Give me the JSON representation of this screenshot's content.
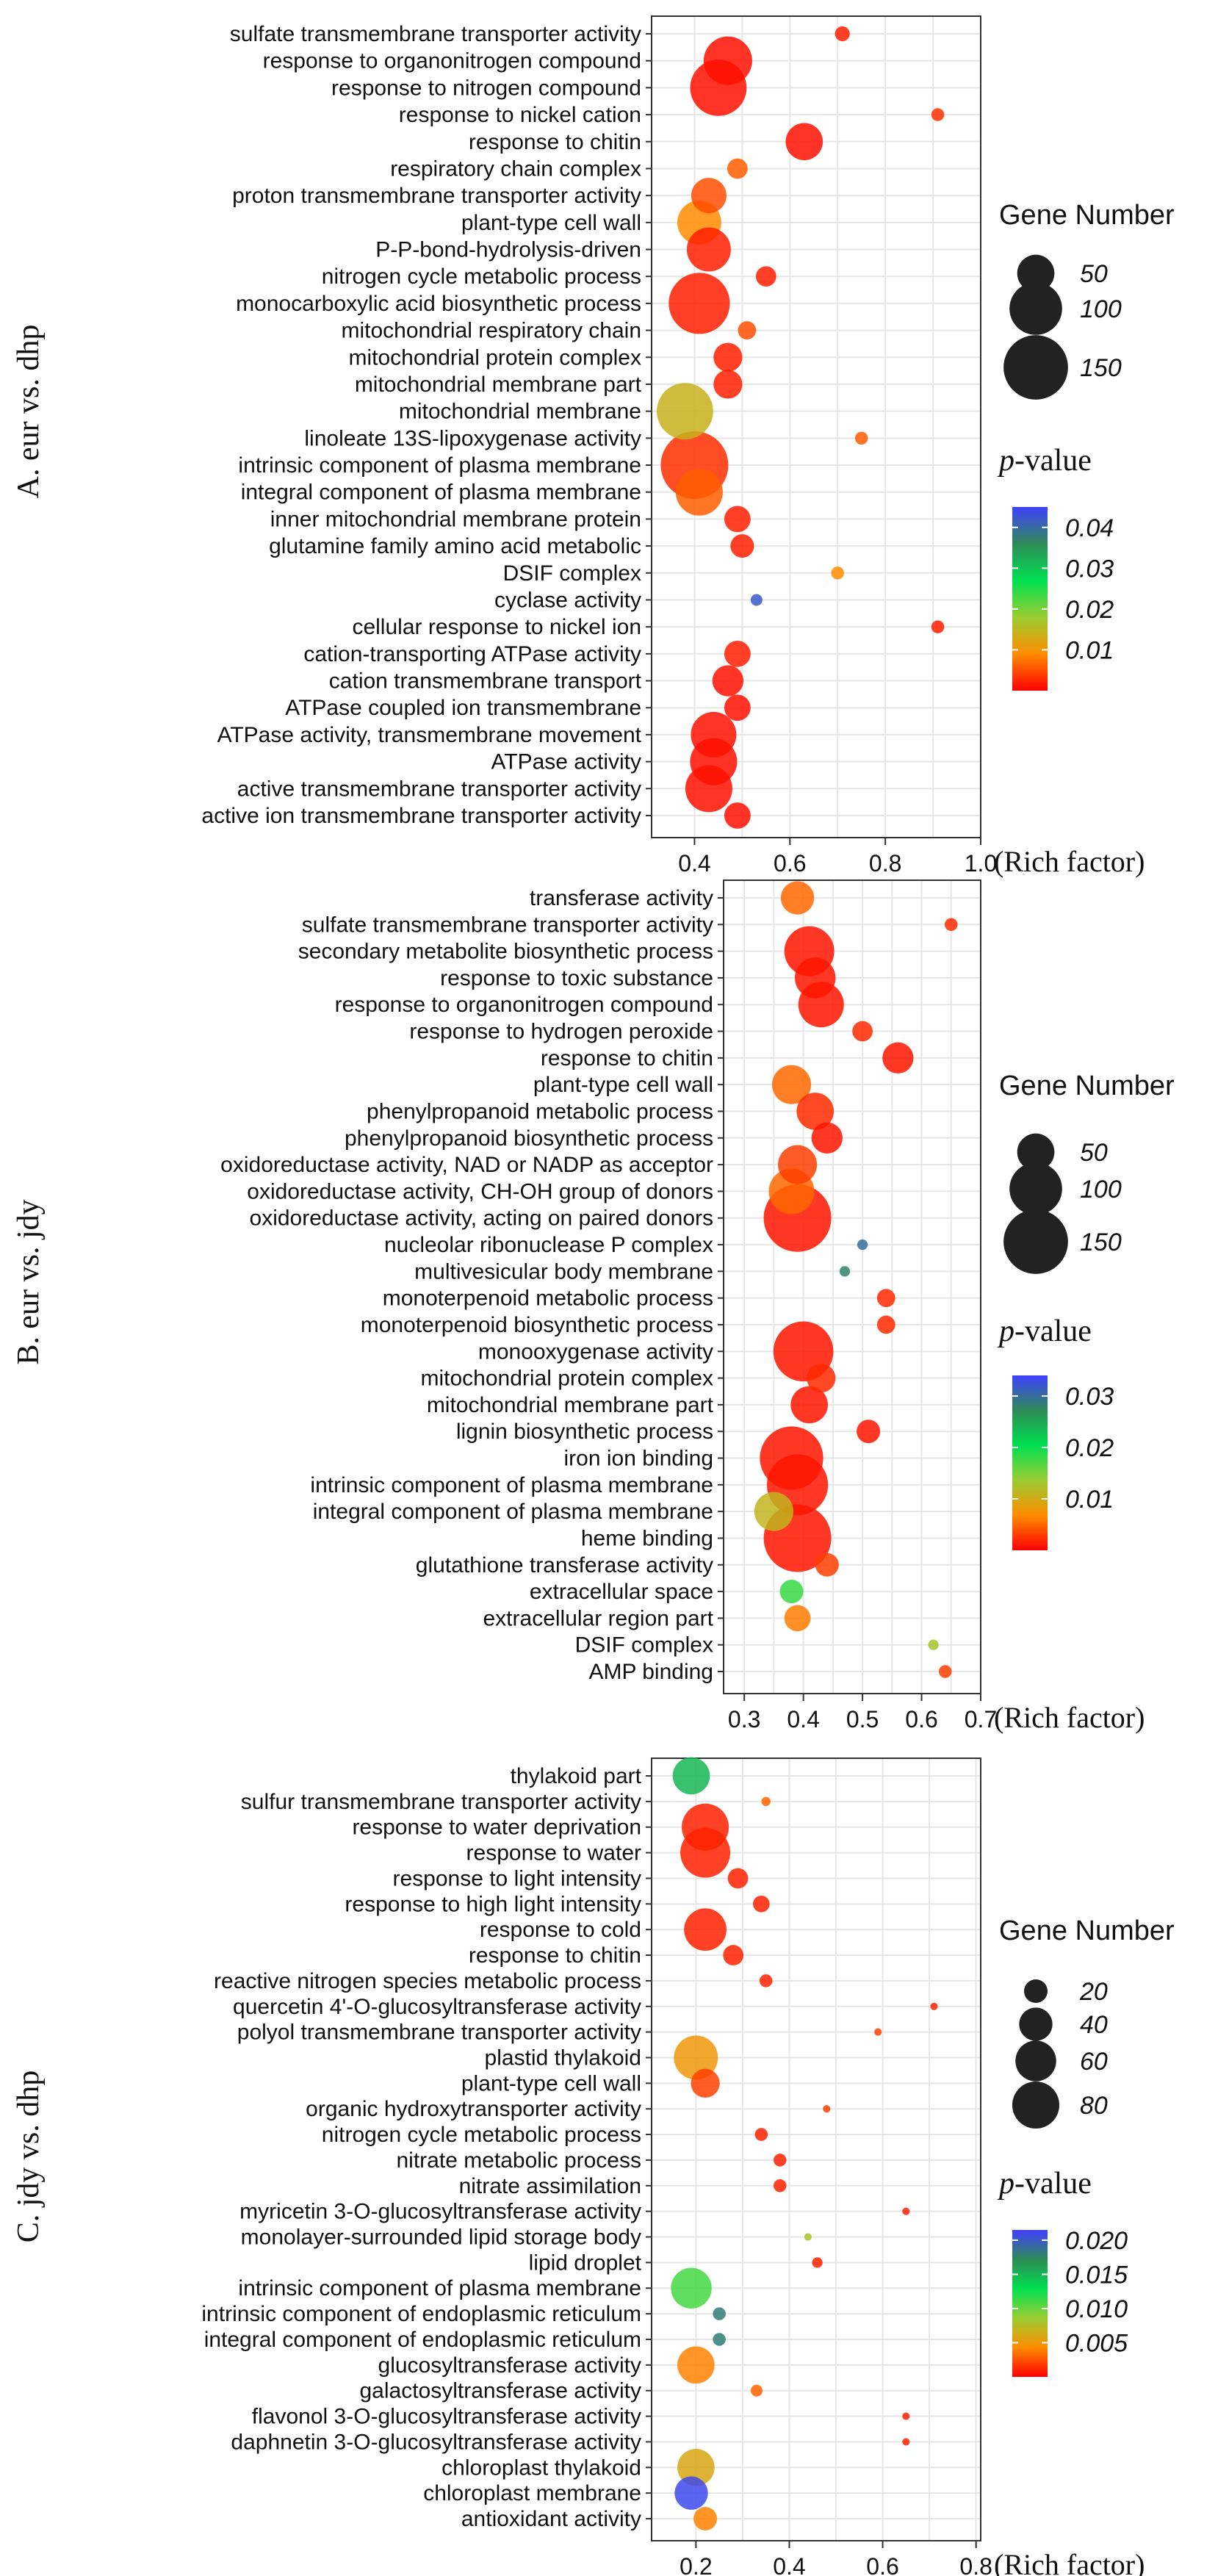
{
  "legend_text": {
    "size_title": "Gene Number",
    "color_title_italic": "p",
    "color_title_rest": "-value",
    "x_label": "(Rich factor)"
  },
  "colors": {
    "low": "#ff0000",
    "scale": [
      "#ff0000",
      "#ff8c00",
      "#9acd32",
      "#00e050",
      "#2e8b57",
      "#4040ff"
    ]
  },
  "chart_data": [
    {
      "type": "scatter",
      "panel_label": "A. eur vs. dhp",
      "xlabel": "(Rich factor)",
      "x_ticks": [
        "0.4",
        "0.6",
        "0.8",
        "1.0"
      ],
      "xlim": [
        0.31,
        1.0
      ],
      "size_legend": {
        "title": "Gene Number",
        "values": [
          50,
          100,
          150
        ],
        "labels": [
          "50",
          "100",
          "150"
        ]
      },
      "color_legend": {
        "title": "p-value",
        "min": 0,
        "max": 0.045,
        "ticks": [
          0.04,
          0.03,
          0.02,
          0.01
        ],
        "labels": [
          "0.04",
          "0.03",
          "0.02",
          "0.01"
        ]
      },
      "categories": [
        "sulfate transmembrane transporter activity",
        "response to organonitrogen compound",
        "response to nitrogen compound",
        "response to nickel cation",
        "response to chitin",
        "respiratory chain complex",
        "proton transmembrane transporter activity",
        "plant-type cell wall",
        "P-P-bond-hydrolysis-driven",
        "nitrogen cycle metabolic process",
        "monocarboxylic acid biosynthetic process",
        "mitochondrial respiratory chain",
        "mitochondrial protein complex",
        "mitochondrial membrane part",
        "mitochondrial membrane",
        "linoleate 13S-lipoxygenase activity",
        "intrinsic component of plasma membrane",
        "integral component of plasma membrane",
        "inner mitochondrial membrane protein",
        "glutamine family amino acid metabolic",
        "DSIF complex",
        "cyclase activity",
        "cellular response to nickel ion",
        "cation-transporting ATPase activity",
        "cation transmembrane transport",
        "ATPase coupled ion transmembrane",
        "ATPase activity, transmembrane movement",
        "ATPase activity",
        "active transmembrane transporter activity",
        "active ion transmembrane transporter activity"
      ],
      "x": [
        0.71,
        0.47,
        0.45,
        0.91,
        0.63,
        0.49,
        0.43,
        0.41,
        0.43,
        0.55,
        0.41,
        0.51,
        0.47,
        0.47,
        0.38,
        0.75,
        0.4,
        0.41,
        0.49,
        0.5,
        0.7,
        0.53,
        0.91,
        0.49,
        0.47,
        0.49,
        0.44,
        0.44,
        0.43,
        0.49
      ],
      "gene_number": [
        8,
        85,
        115,
        6,
        50,
        15,
        45,
        70,
        70,
        15,
        135,
        12,
        30,
        30,
        115,
        6,
        165,
        80,
        25,
        20,
        6,
        5,
        6,
        25,
        35,
        25,
        75,
        80,
        80,
        25
      ],
      "p_value": [
        0.002,
        0.001,
        0.001,
        0.003,
        0.001,
        0.006,
        0.005,
        0.009,
        0.002,
        0.002,
        0.002,
        0.005,
        0.002,
        0.002,
        0.014,
        0.006,
        0.003,
        0.006,
        0.002,
        0.002,
        0.009,
        0.042,
        0.002,
        0.002,
        0.001,
        0.001,
        0.001,
        0.001,
        0.001,
        0.001
      ]
    },
    {
      "type": "scatter",
      "panel_label": "B. eur vs. jdy",
      "xlabel": "(Rich factor)",
      "x_ticks": [
        "0.3",
        "0.4",
        "0.5",
        "0.6",
        "0.7"
      ],
      "xlim": [
        0.265,
        0.7
      ],
      "size_legend": {
        "title": "Gene Number",
        "values": [
          50,
          100,
          150
        ],
        "labels": [
          "50",
          "100",
          "150"
        ]
      },
      "color_legend": {
        "title": "p-value",
        "min": 0,
        "max": 0.034,
        "ticks": [
          0.03,
          0.02,
          0.01
        ],
        "labels": [
          "0.03",
          "0.02",
          "0.01"
        ]
      },
      "categories": [
        "transferase activity",
        "sulfate transmembrane transporter activity",
        "secondary metabolite biosynthetic process",
        "response to toxic substance",
        "response to organonitrogen compound",
        "response to hydrogen peroxide",
        "response to chitin",
        "plant-type cell wall",
        "phenylpropanoid metabolic process",
        "phenylpropanoid biosynthetic process",
        "oxidoreductase activity, NAD or NADP as acceptor",
        "oxidoreductase activity, CH-OH group of donors",
        "oxidoreductase activity, acting on paired donors",
        "nucleolar ribonuclease P complex",
        "multivesicular body membrane",
        "monoterpenoid metabolic process",
        "monoterpenoid biosynthetic process",
        "monooxygenase activity",
        "mitochondrial protein complex",
        "mitochondrial membrane part",
        "lignin biosynthetic process",
        "iron ion binding",
        "intrinsic component of plasma membrane",
        "integral component of plasma membrane",
        "heme binding",
        "glutathione transferase activity",
        "extracellular space",
        "extracellular region part",
        "DSIF complex",
        "AMP binding"
      ],
      "x": [
        0.39,
        0.65,
        0.41,
        0.42,
        0.43,
        0.5,
        0.56,
        0.38,
        0.42,
        0.44,
        0.39,
        0.38,
        0.39,
        0.5,
        0.47,
        0.54,
        0.54,
        0.4,
        0.43,
        0.41,
        0.51,
        0.38,
        0.39,
        0.35,
        0.39,
        0.44,
        0.38,
        0.39,
        0.62,
        0.64
      ],
      "gene_number": [
        40,
        6,
        90,
        60,
        75,
        15,
        35,
        55,
        50,
        35,
        55,
        75,
        165,
        4,
        4,
        12,
        12,
        130,
        30,
        50,
        20,
        145,
        135,
        55,
        165,
        20,
        20,
        25,
        4,
        6
      ],
      "p_value": [
        0.005,
        0.002,
        0.001,
        0.001,
        0.001,
        0.002,
        0.001,
        0.005,
        0.002,
        0.001,
        0.003,
        0.005,
        0.001,
        0.03,
        0.028,
        0.002,
        0.002,
        0.001,
        0.002,
        0.001,
        0.001,
        0.001,
        0.001,
        0.011,
        0.001,
        0.003,
        0.018,
        0.006,
        0.013,
        0.003
      ]
    },
    {
      "type": "scatter",
      "panel_label": "C. jdy vs. dhp",
      "xlabel": "(Rich factor)",
      "x_ticks": [
        "0.2",
        "0.4",
        "0.6",
        "0.8"
      ],
      "xlim": [
        0.105,
        0.81
      ],
      "size_legend": {
        "title": "Gene Number",
        "values": [
          20,
          40,
          60,
          80
        ],
        "labels": [
          "20",
          "40",
          "60",
          "80"
        ]
      },
      "color_legend": {
        "title": "p-value",
        "min": 0,
        "max": 0.0215,
        "ticks": [
          0.02,
          0.015,
          0.01,
          0.005
        ],
        "labels": [
          "0.020",
          "0.015",
          "0.010",
          "0.005"
        ]
      },
      "categories": [
        "thylakoid part",
        "sulfur transmembrane transporter activity",
        "response to water deprivation",
        "response to water",
        "response to light intensity",
        "response to high light intensity",
        "response to cold",
        "response to chitin",
        "reactive nitrogen species metabolic process",
        "quercetin 4'-O-glucosyltransferase activity",
        "polyol transmembrane transporter activity",
        "plastid thylakoid",
        "plant-type cell wall",
        "organic hydroxytransporter activity",
        "nitrogen cycle metabolic process",
        "nitrate metabolic process",
        "nitrate assimilation",
        "myricetin 3-O-glucosyltransferase activity",
        "monolayer-surrounded lipid storage body",
        "lipid droplet",
        "intrinsic component of plasma membrane",
        "intrinsic component of endoplasmic reticulum",
        "integral component of endoplasmic reticulum",
        "glucosyltransferase activity",
        "galactosyltransferase activity",
        "flavonol 3-O-glucosyltransferase activity",
        "daphnetin 3-O-glucosyltransferase activity",
        "chloroplast thylakoid",
        "chloroplast membrane",
        "antioxidant activity"
      ],
      "x": [
        0.19,
        0.35,
        0.22,
        0.22,
        0.29,
        0.34,
        0.22,
        0.28,
        0.35,
        0.71,
        0.59,
        0.2,
        0.22,
        0.48,
        0.34,
        0.38,
        0.38,
        0.65,
        0.44,
        0.46,
        0.19,
        0.25,
        0.25,
        0.2,
        0.33,
        0.65,
        0.65,
        0.2,
        0.19,
        0.22
      ],
      "gene_number": [
        50,
        3,
        80,
        90,
        15,
        10,
        65,
        15,
        6,
        2,
        2,
        70,
        30,
        2,
        6,
        6,
        6,
        2,
        2,
        4,
        60,
        6,
        6,
        50,
        5,
        2,
        2,
        50,
        40,
        20
      ],
      "p_value": [
        0.015,
        0.003,
        0.001,
        0.001,
        0.001,
        0.001,
        0.001,
        0.001,
        0.001,
        0.001,
        0.002,
        0.005,
        0.002,
        0.002,
        0.001,
        0.001,
        0.001,
        0.001,
        0.008,
        0.001,
        0.011,
        0.018,
        0.018,
        0.004,
        0.003,
        0.001,
        0.001,
        0.006,
        0.021,
        0.004
      ]
    }
  ]
}
